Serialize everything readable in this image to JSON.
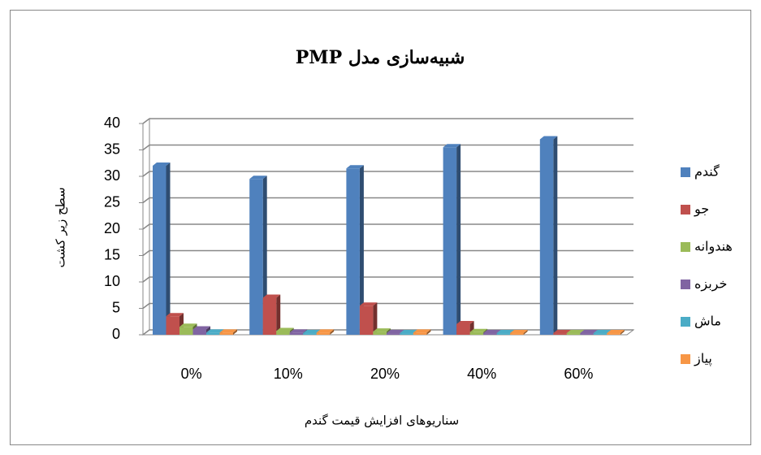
{
  "chart_data": {
    "type": "bar3d",
    "title": "شبیه‌سازی مدل PMP",
    "y_label": "سطح زیر کشت",
    "x_label": "سناریوهای افزایش قیمت گندم",
    "categories": [
      "0%",
      "10%",
      "20%",
      "40%",
      "60%"
    ],
    "series": [
      {
        "name": "گندم",
        "color": "#4f81bd",
        "values": [
          32,
          29.5,
          31.5,
          35.5,
          37
        ]
      },
      {
        "name": "جو",
        "color": "#c0504d",
        "values": [
          3.5,
          7,
          5.5,
          2,
          0.3
        ]
      },
      {
        "name": "هندوانه",
        "color": "#9bbb59",
        "values": [
          1.5,
          0.7,
          0.6,
          0.5,
          0.3
        ]
      },
      {
        "name": "خربزه",
        "color": "#8064a2",
        "values": [
          1,
          0.4,
          0.3,
          0.3,
          0.3
        ]
      },
      {
        "name": "ماش",
        "color": "#4bacc6",
        "values": [
          0.4,
          0.3,
          0.3,
          0.3,
          0.3
        ]
      },
      {
        "name": "پیاز",
        "color": "#f79646",
        "values": [
          0.4,
          0.4,
          0.4,
          0.3,
          0.3
        ]
      }
    ],
    "ylim": [
      0,
      40
    ],
    "yticks": [
      0,
      5,
      10,
      15,
      20,
      25,
      30,
      35,
      40
    ],
    "grid": true,
    "legend": "right"
  }
}
